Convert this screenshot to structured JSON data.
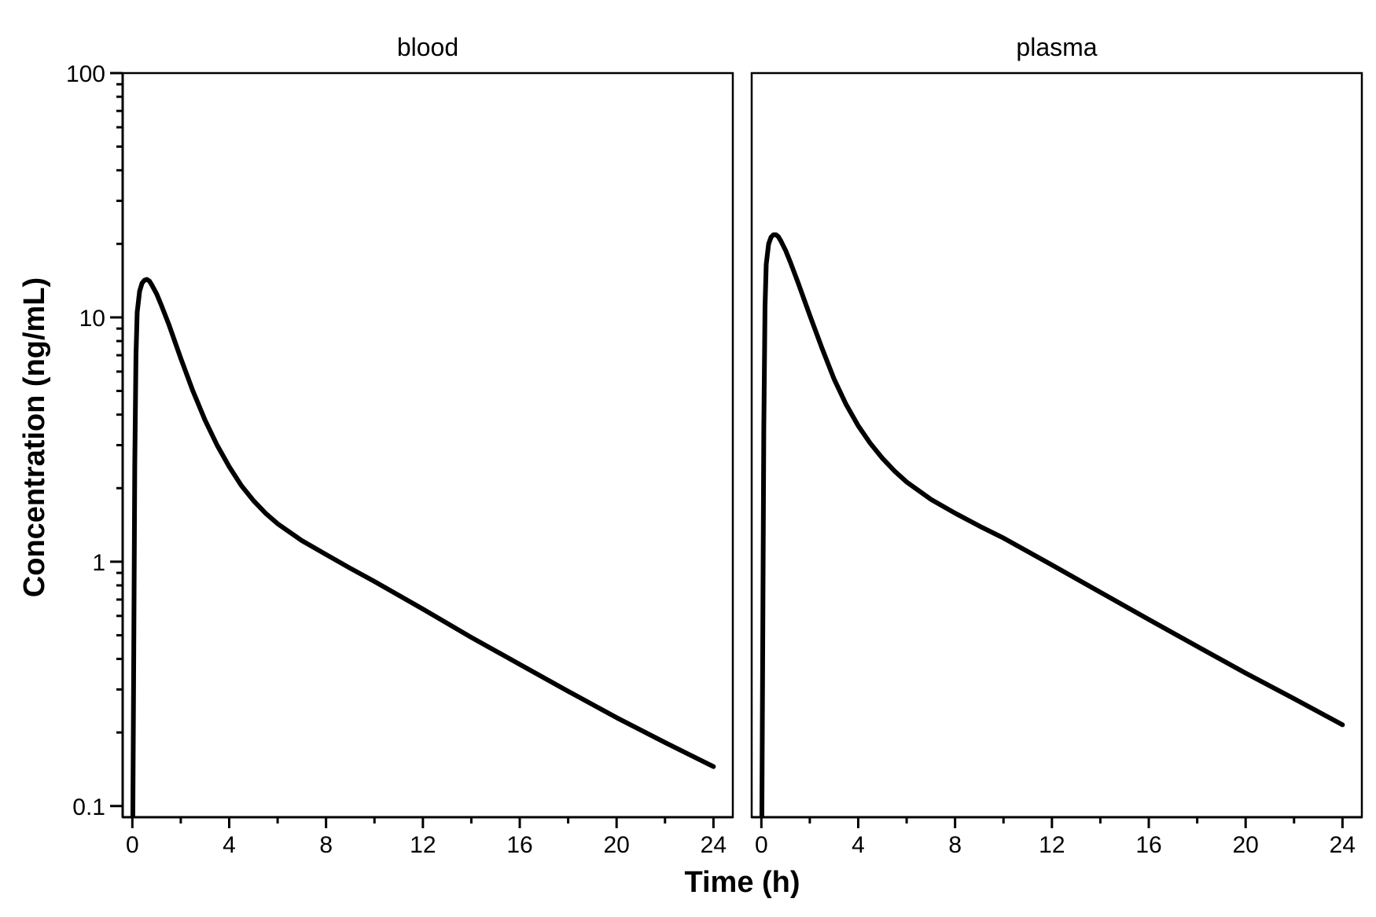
{
  "chart_data": {
    "type": "line",
    "xlabel": "Time (h)",
    "ylabel": "Concentration (ng/mL)",
    "yscale": "log",
    "xlim": [
      -0.4,
      24.8
    ],
    "ylim": [
      0.09,
      100
    ],
    "xticks": [
      0,
      4,
      8,
      12,
      16,
      20,
      24
    ],
    "xtick_labels": [
      "0",
      "4",
      "8",
      "12",
      "16",
      "20",
      "24"
    ],
    "yticks": [
      0.1,
      1,
      10,
      100
    ],
    "ytick_labels": [
      "0.1",
      "1",
      "10",
      "100"
    ],
    "grid": false,
    "legend": "none",
    "panels": [
      {
        "title": "blood",
        "x": [
          0.02,
          0.05,
          0.1,
          0.15,
          0.2,
          0.3,
          0.4,
          0.5,
          0.6,
          0.7,
          0.8,
          1,
          1.2,
          1.5,
          2,
          2.5,
          3,
          3.5,
          4,
          4.5,
          5,
          5.5,
          6,
          7,
          8,
          9,
          10,
          12,
          14,
          16,
          18,
          20,
          22,
          24
        ],
        "y": [
          0.09,
          0.3,
          2.5,
          7.0,
          10.5,
          12.8,
          13.8,
          14.2,
          14.3,
          14.1,
          13.6,
          12.5,
          11.2,
          9.4,
          6.8,
          5.0,
          3.8,
          3.0,
          2.45,
          2.05,
          1.78,
          1.58,
          1.43,
          1.22,
          1.07,
          0.94,
          0.83,
          0.64,
          0.49,
          0.38,
          0.295,
          0.23,
          0.182,
          0.145
        ]
      },
      {
        "title": "plasma",
        "x": [
          0.02,
          0.05,
          0.1,
          0.15,
          0.2,
          0.3,
          0.4,
          0.5,
          0.6,
          0.7,
          0.8,
          1,
          1.2,
          1.5,
          2,
          2.5,
          3,
          3.5,
          4,
          4.5,
          5,
          5.5,
          6,
          7,
          8,
          9,
          10,
          12,
          14,
          16,
          18,
          20,
          22,
          24
        ],
        "y": [
          0.09,
          0.35,
          3.5,
          11.0,
          16.5,
          20.0,
          21.3,
          21.8,
          21.8,
          21.4,
          20.6,
          18.8,
          16.8,
          14.0,
          10.2,
          7.5,
          5.6,
          4.4,
          3.6,
          3.05,
          2.65,
          2.35,
          2.12,
          1.8,
          1.58,
          1.4,
          1.25,
          0.97,
          0.75,
          0.58,
          0.45,
          0.35,
          0.275,
          0.215
        ]
      }
    ]
  }
}
